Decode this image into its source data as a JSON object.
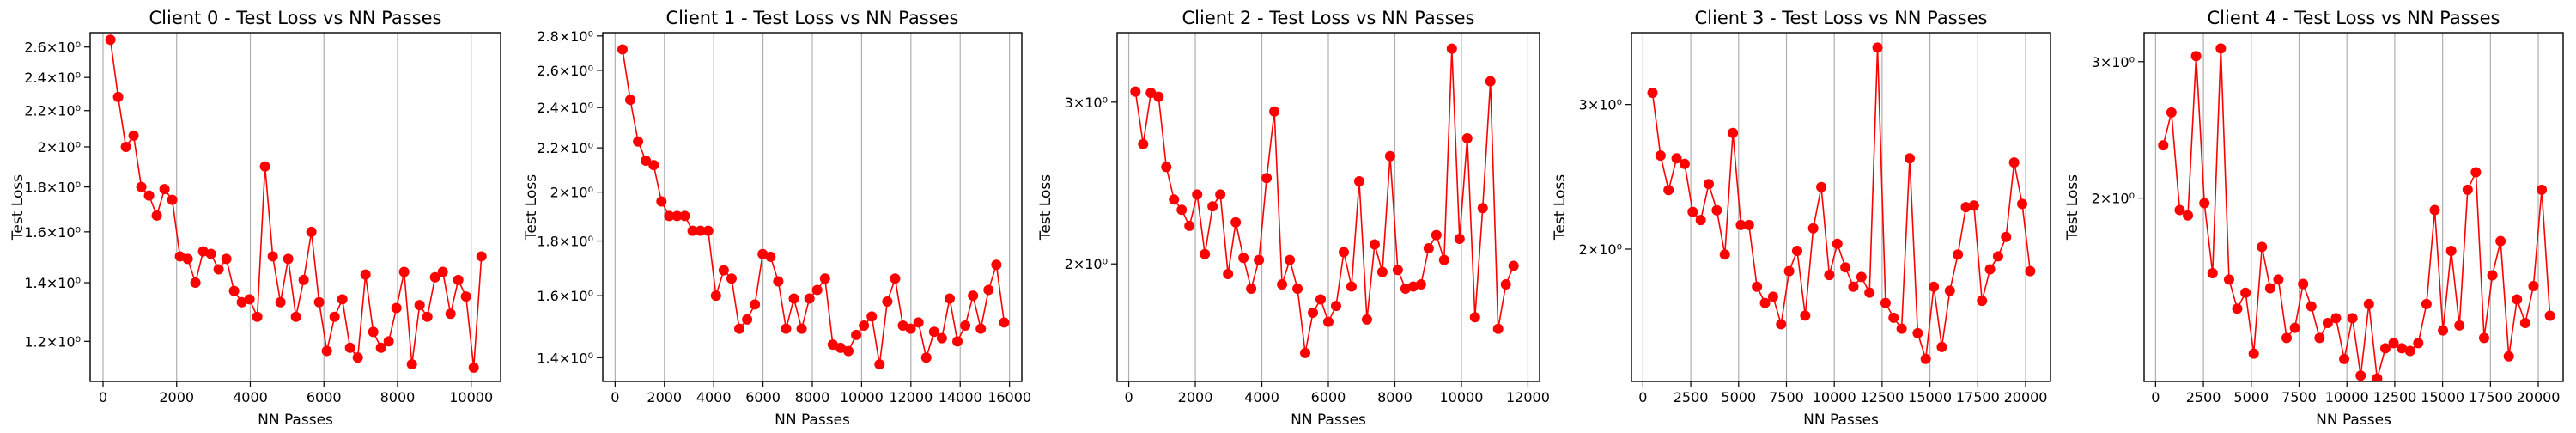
{
  "chart_data": [
    {
      "type": "line",
      "title": "Client 0 - Test Loss vs NN Passes",
      "xlabel": "NN Passes",
      "ylabel": "Test Loss",
      "color": "red",
      "y_scale": "log",
      "grid": "x",
      "xlim": [
        -350,
        10800
      ],
      "ylim": [
        1.08,
        2.7
      ],
      "xticks": [
        0,
        2000,
        4000,
        6000,
        8000,
        10000
      ],
      "yticks": [
        {
          "value": 1.2,
          "label": "1.2×10⁰"
        },
        {
          "value": 1.4,
          "label": "1.4×10⁰"
        },
        {
          "value": 1.6,
          "label": "1.6×10⁰"
        },
        {
          "value": 1.8,
          "label": "1.8×10⁰"
        },
        {
          "value": 2.0,
          "label": "2×10⁰"
        },
        {
          "value": 2.2,
          "label": "2.2×10⁰"
        },
        {
          "value": 2.4,
          "label": "2.4×10⁰"
        },
        {
          "value": 2.6,
          "label": "2.6×10⁰"
        }
      ],
      "x": [
        200,
        410,
        620,
        830,
        1040,
        1250,
        1460,
        1670,
        1880,
        2090,
        2300,
        2510,
        2720,
        2930,
        3140,
        3350,
        3560,
        3770,
        3980,
        4190,
        4400,
        4610,
        4820,
        5030,
        5240,
        5450,
        5660,
        5870,
        6080,
        6290,
        6500,
        6710,
        6920,
        7130,
        7340,
        7550,
        7760,
        7970,
        8180,
        8390,
        8600,
        8810,
        9020,
        9230,
        9440,
        9650,
        9860,
        10070,
        10280
      ],
      "values": [
        2.65,
        2.28,
        2.0,
        2.06,
        1.8,
        1.76,
        1.67,
        1.79,
        1.74,
        1.5,
        1.49,
        1.4,
        1.52,
        1.51,
        1.45,
        1.49,
        1.37,
        1.33,
        1.34,
        1.28,
        1.9,
        1.5,
        1.33,
        1.49,
        1.28,
        1.41,
        1.6,
        1.33,
        1.17,
        1.28,
        1.34,
        1.18,
        1.15,
        1.43,
        1.23,
        1.18,
        1.2,
        1.31,
        1.44,
        1.13,
        1.32,
        1.28,
        1.42,
        1.44,
        1.29,
        1.41,
        1.35,
        1.12,
        1.5
      ]
    },
    {
      "type": "line",
      "title": "Client 1 - Test Loss vs NN Passes",
      "xlabel": "NN Passes",
      "ylabel": "Test Loss",
      "color": "red",
      "y_scale": "log",
      "grid": "x",
      "xlim": [
        -500,
        16500
      ],
      "ylim": [
        1.33,
        2.82
      ],
      "xticks": [
        0,
        2000,
        4000,
        6000,
        8000,
        10000,
        12000,
        14000,
        16000
      ],
      "yticks": [
        {
          "value": 1.4,
          "label": "1.4×10⁰"
        },
        {
          "value": 1.6,
          "label": "1.6×10⁰"
        },
        {
          "value": 1.8,
          "label": "1.8×10⁰"
        },
        {
          "value": 2.0,
          "label": "2×10⁰"
        },
        {
          "value": 2.2,
          "label": "2.2×10⁰"
        },
        {
          "value": 2.4,
          "label": "2.4×10⁰"
        },
        {
          "value": 2.6,
          "label": "2.6×10⁰"
        },
        {
          "value": 2.8,
          "label": "2.8×10⁰"
        }
      ],
      "x": [
        300,
        616,
        932,
        1248,
        1564,
        1880,
        2196,
        2512,
        2828,
        3144,
        3460,
        3776,
        4092,
        4408,
        4724,
        5040,
        5356,
        5672,
        5988,
        6304,
        6620,
        6936,
        7252,
        7568,
        7884,
        8200,
        8516,
        8832,
        9148,
        9464,
        9780,
        10096,
        10412,
        10728,
        11044,
        11360,
        11676,
        11992,
        12308,
        12624,
        12940,
        13256,
        13572,
        13888,
        14204,
        14520,
        14836,
        15152,
        15468,
        15784
      ],
      "values": [
        2.72,
        2.44,
        2.23,
        2.14,
        2.12,
        1.96,
        1.9,
        1.9,
        1.9,
        1.84,
        1.84,
        1.84,
        1.6,
        1.69,
        1.66,
        1.49,
        1.52,
        1.57,
        1.75,
        1.74,
        1.65,
        1.49,
        1.59,
        1.49,
        1.59,
        1.62,
        1.66,
        1.44,
        1.43,
        1.42,
        1.47,
        1.5,
        1.53,
        1.38,
        1.58,
        1.66,
        1.5,
        1.49,
        1.51,
        1.4,
        1.48,
        1.46,
        1.59,
        1.45,
        1.5,
        1.6,
        1.49,
        1.62,
        1.71,
        1.51
      ]
    },
    {
      "type": "line",
      "title": "Client 2 - Test Loss vs NN Passes",
      "xlabel": "NN Passes",
      "ylabel": "Test Loss",
      "color": "red",
      "y_scale": "log",
      "grid": "x",
      "xlim": [
        -350,
        12350
      ],
      "ylim": [
        1.49,
        3.57
      ],
      "xticks": [
        0,
        2000,
        4000,
        6000,
        8000,
        10000,
        12000
      ],
      "yticks": [
        {
          "value": 2,
          "label": "2×10⁰"
        },
        {
          "value": 3,
          "label": "3×10⁰"
        }
      ],
      "x": [
        200,
        432,
        664,
        896,
        1128,
        1360,
        1592,
        1824,
        2056,
        2288,
        2520,
        2752,
        2984,
        3216,
        3448,
        3680,
        3912,
        4144,
        4376,
        4608,
        4840,
        5072,
        5304,
        5536,
        5768,
        6000,
        6232,
        6464,
        6696,
        6928,
        7160,
        7392,
        7624,
        7856,
        8088,
        8320,
        8552,
        8784,
        9016,
        9248,
        9480,
        9712,
        9944,
        10176,
        10408,
        10640,
        10872,
        11104,
        11336,
        11568
      ],
      "values": [
        3.08,
        2.7,
        3.07,
        3.04,
        2.55,
        2.35,
        2.29,
        2.2,
        2.38,
        2.05,
        2.31,
        2.38,
        1.95,
        2.22,
        2.03,
        1.88,
        2.02,
        2.48,
        2.93,
        1.9,
        2.02,
        1.88,
        1.6,
        1.77,
        1.83,
        1.73,
        1.8,
        2.06,
        1.89,
        2.46,
        1.74,
        2.1,
        1.96,
        2.62,
        1.97,
        1.88,
        1.89,
        1.9,
        2.08,
        2.15,
        2.02,
        3.43,
        2.13,
        2.74,
        1.75,
        2.3,
        3.16,
        1.7,
        1.9,
        1.99
      ]
    },
    {
      "type": "line",
      "title": "Client 3 - Test Loss vs NN Passes",
      "xlabel": "NN Passes",
      "ylabel": "Test Loss",
      "color": "red",
      "y_scale": "log",
      "grid": "x",
      "xlim": [
        -600,
        21300
      ],
      "ylim": [
        1.38,
        3.67
      ],
      "xticks": [
        0,
        2500,
        5000,
        7500,
        10000,
        12500,
        15000,
        17500,
        20000
      ],
      "yticks": [
        {
          "value": 2,
          "label": "2×10⁰"
        },
        {
          "value": 3,
          "label": "3×10⁰"
        }
      ],
      "x": [
        500,
        920,
        1340,
        1760,
        2180,
        2600,
        3020,
        3440,
        3860,
        4280,
        4700,
        5120,
        5540,
        5960,
        6380,
        6800,
        7220,
        7640,
        8060,
        8480,
        8900,
        9320,
        9740,
        10160,
        10580,
        11000,
        11420,
        11840,
        12260,
        12680,
        13100,
        13520,
        13940,
        14360,
        14780,
        15200,
        15620,
        16040,
        16460,
        16880,
        17300,
        17720,
        18140,
        18560,
        18980,
        19400,
        19820,
        20240
      ],
      "values": [
        3.1,
        2.6,
        2.36,
        2.58,
        2.54,
        2.22,
        2.17,
        2.4,
        2.23,
        1.97,
        2.77,
        2.14,
        2.14,
        1.8,
        1.72,
        1.75,
        1.62,
        1.88,
        1.99,
        1.66,
        2.12,
        2.38,
        1.86,
        2.03,
        1.9,
        1.8,
        1.85,
        1.77,
        3.52,
        1.72,
        1.65,
        1.6,
        2.58,
        1.58,
        1.47,
        1.8,
        1.52,
        1.78,
        1.97,
        2.25,
        2.26,
        1.73,
        1.89,
        1.96,
        2.07,
        2.55,
        2.27,
        1.88
      ]
    },
    {
      "type": "line",
      "title": "Client 4 - Test Loss vs NN Passes",
      "xlabel": "NN Passes",
      "ylabel": "Test Loss",
      "color": "red",
      "y_scale": "log",
      "grid": "x",
      "xlim": [
        -600,
        21300
      ],
      "ylim": [
        1.16,
        3.27
      ],
      "xticks": [
        0,
        2500,
        5000,
        7500,
        10000,
        12500,
        15000,
        17500,
        20000
      ],
      "yticks": [
        {
          "value": 2,
          "label": "2×10⁰"
        },
        {
          "value": 3,
          "label": "3×10⁰"
        }
      ],
      "x": [
        400,
        830,
        1260,
        1690,
        2120,
        2550,
        2980,
        3410,
        3840,
        4270,
        4700,
        5130,
        5560,
        5990,
        6420,
        6850,
        7280,
        7710,
        8140,
        8570,
        9000,
        9430,
        9860,
        10290,
        10720,
        11150,
        11580,
        12010,
        12440,
        12870,
        13300,
        13730,
        14160,
        14590,
        15020,
        15450,
        15880,
        16310,
        16740,
        17170,
        17600,
        18030,
        18460,
        18890,
        19320,
        19750,
        20180,
        20610
      ],
      "values": [
        2.34,
        2.58,
        1.93,
        1.9,
        3.05,
        1.97,
        1.6,
        3.12,
        1.57,
        1.44,
        1.51,
        1.26,
        1.73,
        1.53,
        1.57,
        1.32,
        1.36,
        1.55,
        1.45,
        1.32,
        1.38,
        1.4,
        1.24,
        1.4,
        1.18,
        1.46,
        1.17,
        1.28,
        1.3,
        1.28,
        1.27,
        1.3,
        1.46,
        1.93,
        1.35,
        1.71,
        1.37,
        2.05,
        2.16,
        1.32,
        1.59,
        1.76,
        1.25,
        1.48,
        1.38,
        1.54,
        2.05,
        1.41
      ]
    }
  ]
}
